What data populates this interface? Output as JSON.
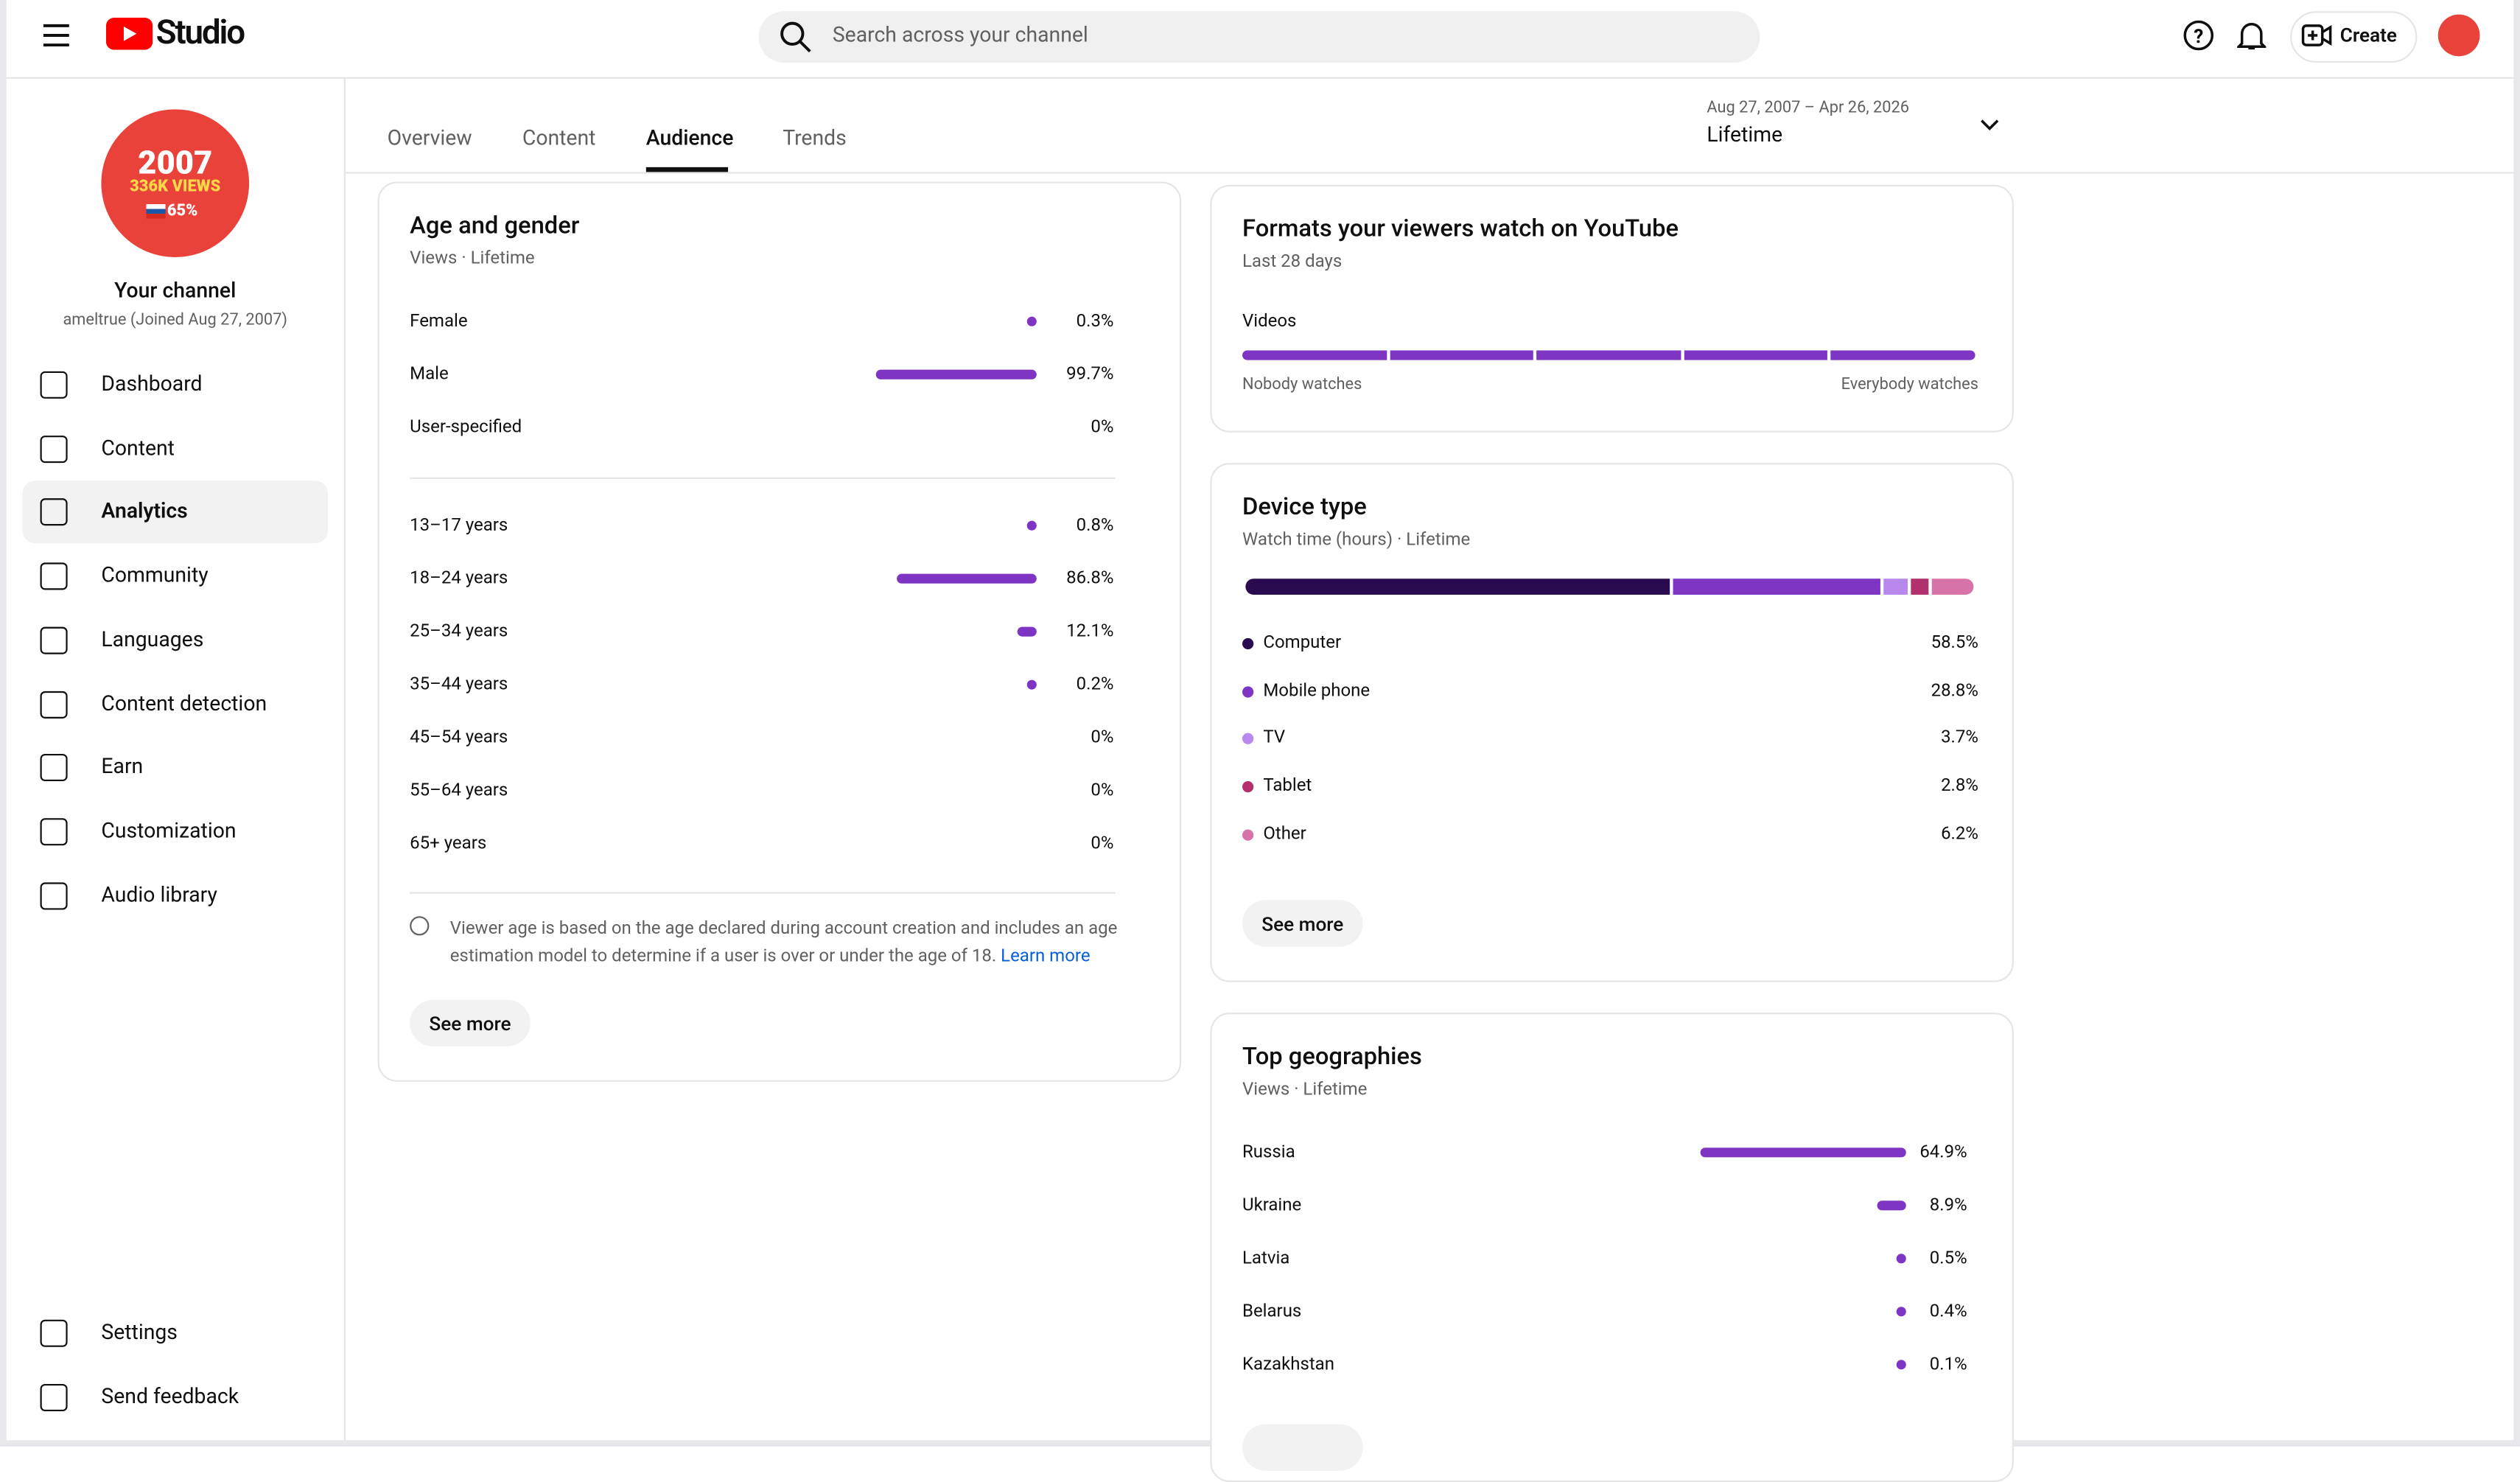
{
  "header": {
    "logo_text": "Studio",
    "search_placeholder": "Search across your channel",
    "create": "Create"
  },
  "sidebar": {
    "avatar": {
      "year": "2007",
      "views": "336K VIEWS",
      "pct": "65%"
    },
    "channel_name": "Your channel",
    "channel_sub": "ameltrue (Joined Aug 27, 2007)",
    "nav": [
      "Dashboard",
      "Content",
      "Analytics",
      "Community",
      "Languages",
      "Content detection",
      "Earn",
      "Customization",
      "Audio library"
    ],
    "active": 2,
    "bottom_nav": [
      "Settings",
      "Send feedback"
    ]
  },
  "tabs": {
    "items": [
      "Overview",
      "Content",
      "Audience",
      "Trends"
    ],
    "active": 2
  },
  "date_range": {
    "range": "Aug 27, 2007 – Apr 26, 2026",
    "label": "Lifetime"
  },
  "age_gender": {
    "title": "Age and gender",
    "subtitle": "Views · Lifetime",
    "gender": [
      {
        "label": "Female",
        "value": 0.3,
        "value_label": "0.3%"
      },
      {
        "label": "Male",
        "value": 99.7,
        "value_label": "99.7%"
      },
      {
        "label": "User-specified",
        "value": 0,
        "value_label": "0%"
      }
    ],
    "age": [
      {
        "label": "13–17 years",
        "value": 0.8,
        "value_label": "0.8%"
      },
      {
        "label": "18–24 years",
        "value": 86.8,
        "value_label": "86.8%"
      },
      {
        "label": "25–34 years",
        "value": 12.1,
        "value_label": "12.1%"
      },
      {
        "label": "35–44 years",
        "value": 0.2,
        "value_label": "0.2%"
      },
      {
        "label": "45–54 years",
        "value": 0,
        "value_label": "0%"
      },
      {
        "label": "55–64 years",
        "value": 0,
        "value_label": "0%"
      },
      {
        "label": "65+ years",
        "value": 0,
        "value_label": "0%"
      }
    ],
    "note": "Viewer age is based on the age declared during account creation and includes an age estimation model to determine if a user is over or under the age of 18.",
    "learn_more": "Learn more",
    "button": "See more"
  },
  "formats": {
    "title": "Formats your viewers watch on YouTube",
    "subtitle": "Last 28 days",
    "label": "Videos",
    "left": "Nobody watches",
    "right": "Everybody watches"
  },
  "device": {
    "title": "Device type",
    "subtitle": "Watch time (hours) · Lifetime",
    "rows": [
      {
        "label": "Computer",
        "value": 58.5,
        "value_label": "58.5%",
        "color": "#2b0b4f"
      },
      {
        "label": "Mobile phone",
        "value": 28.8,
        "value_label": "28.8%",
        "color": "#7f35c3"
      },
      {
        "label": "TV",
        "value": 3.7,
        "value_label": "3.7%",
        "color": "#b988ec"
      },
      {
        "label": "Tablet",
        "value": 2.8,
        "value_label": "2.8%",
        "color": "#b3306e"
      },
      {
        "label": "Other",
        "value": 6.2,
        "value_label": "6.2%",
        "color": "#d873aa"
      }
    ],
    "button": "See more"
  },
  "geo": {
    "title": "Top geographies",
    "subtitle": "Views · Lifetime",
    "rows": [
      {
        "label": "Russia",
        "value": 64.9,
        "value_label": "64.9%"
      },
      {
        "label": "Ukraine",
        "value": 8.9,
        "value_label": "8.9%"
      },
      {
        "label": "Latvia",
        "value": 0.5,
        "value_label": "0.5%"
      },
      {
        "label": "Belarus",
        "value": 0.4,
        "value_label": "0.4%"
      },
      {
        "label": "Kazakhstan",
        "value": 0.1,
        "value_label": "0.1%"
      }
    ]
  }
}
